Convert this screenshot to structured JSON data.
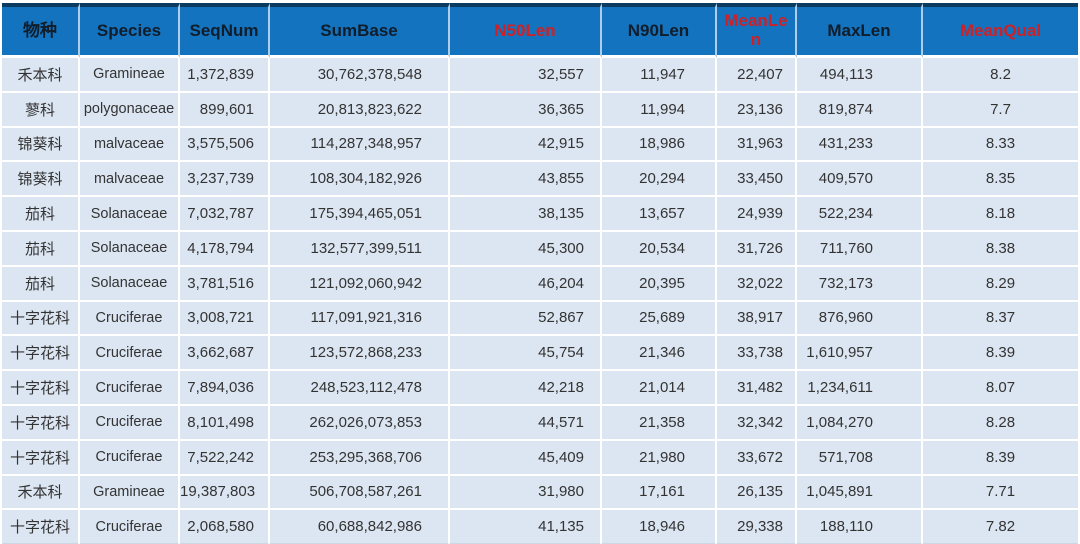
{
  "colors": {
    "header_bg": "#1473BF",
    "header_top_border": "#0c3b60",
    "header_text": "#101d2b",
    "header_red_text": "#cc2127",
    "row_bg": "#dce6f2",
    "grid_lines": "#ffffff",
    "body_text": "#333333"
  },
  "table": {
    "columns": [
      {
        "label": "物种",
        "red": false
      },
      {
        "label": "Species",
        "red": false
      },
      {
        "label": "SeqNum",
        "red": false
      },
      {
        "label": "SumBase",
        "red": false
      },
      {
        "label": "N50Len",
        "red": true
      },
      {
        "label": "N90Len",
        "red": false
      },
      {
        "label": "MeanLen",
        "red": true
      },
      {
        "label": "MaxLen",
        "red": false
      },
      {
        "label": "MeanQual",
        "red": true
      }
    ],
    "rows": [
      [
        "禾本科",
        "Gramineae",
        "1,372,839",
        "30,762,378,548",
        "32,557",
        "11,947",
        "22,407",
        "494,113",
        "8.2"
      ],
      [
        "蓼科",
        "polygonaceae",
        "899,601",
        "20,813,823,622",
        "36,365",
        "11,994",
        "23,136",
        "819,874",
        "7.7"
      ],
      [
        "锦葵科",
        "malvaceae",
        "3,575,506",
        "114,287,348,957",
        "42,915",
        "18,986",
        "31,963",
        "431,233",
        "8.33"
      ],
      [
        "锦葵科",
        "malvaceae",
        "3,237,739",
        "108,304,182,926",
        "43,855",
        "20,294",
        "33,450",
        "409,570",
        "8.35"
      ],
      [
        "茄科",
        "Solanaceae",
        "7,032,787",
        "175,394,465,051",
        "38,135",
        "13,657",
        "24,939",
        "522,234",
        "8.18"
      ],
      [
        "茄科",
        "Solanaceae",
        "4,178,794",
        "132,577,399,511",
        "45,300",
        "20,534",
        "31,726",
        "711,760",
        "8.38"
      ],
      [
        "茄科",
        "Solanaceae",
        "3,781,516",
        "121,092,060,942",
        "46,204",
        "20,395",
        "32,022",
        "732,173",
        "8.29"
      ],
      [
        "十字花科",
        "Cruciferae",
        "3,008,721",
        "117,091,921,316",
        "52,867",
        "25,689",
        "38,917",
        "876,960",
        "8.37"
      ],
      [
        "十字花科",
        "Cruciferae",
        "3,662,687",
        "123,572,868,233",
        "45,754",
        "21,346",
        "33,738",
        "1,610,957",
        "8.39"
      ],
      [
        "十字花科",
        "Cruciferae",
        "7,894,036",
        "248,523,112,478",
        "42,218",
        "21,014",
        "31,482",
        "1,234,611",
        "8.07"
      ],
      [
        "十字花科",
        "Cruciferae",
        "8,101,498",
        "262,026,073,853",
        "44,571",
        "21,358",
        "32,342",
        "1,084,270",
        "8.28"
      ],
      [
        "十字花科",
        "Cruciferae",
        "7,522,242",
        "253,295,368,706",
        "45,409",
        "21,980",
        "33,672",
        "571,708",
        "8.39"
      ],
      [
        "禾本科",
        "Gramineae",
        "19,387,803",
        "506,708,587,261",
        "31,980",
        "17,161",
        "26,135",
        "1,045,891",
        "7.71"
      ],
      [
        "十字花科",
        "Cruciferae",
        "2,068,580",
        "60,688,842,986",
        "41,135",
        "18,946",
        "29,338",
        "188,110",
        "7.82"
      ]
    ]
  }
}
